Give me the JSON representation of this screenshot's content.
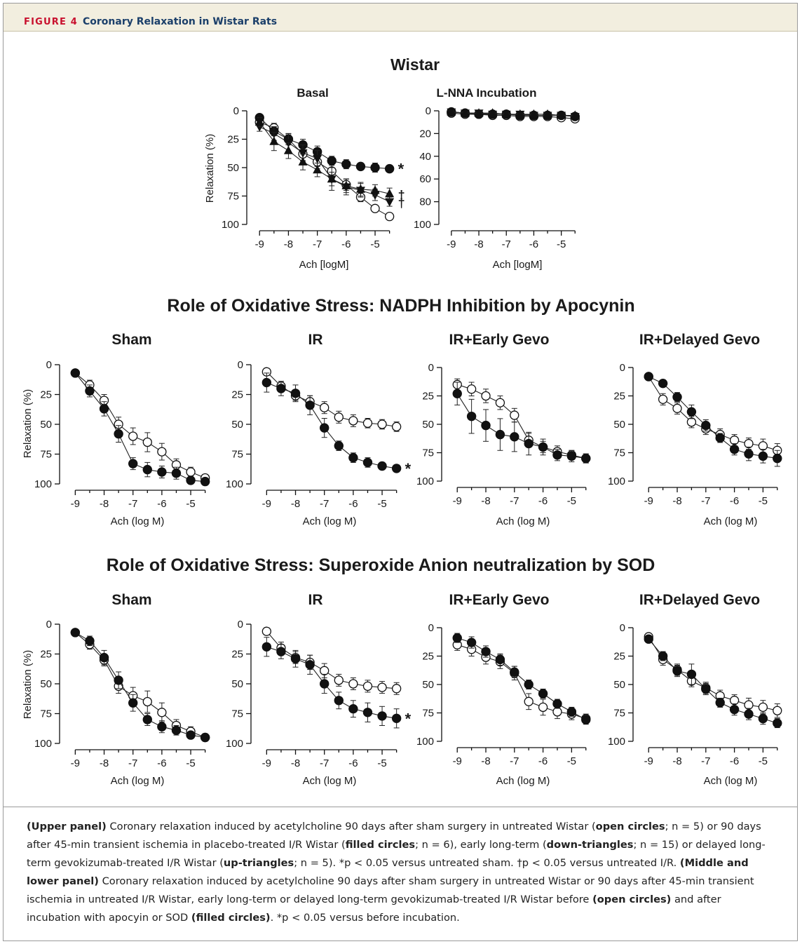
{
  "figure": {
    "label": "FIGURE 4",
    "title": "Coronary Relaxation in Wistar Rats"
  },
  "sections": [
    {
      "title": "Wistar"
    },
    {
      "title": "Role of Oxidative Stress: NADPH Inhibition by Apocynin"
    },
    {
      "title": "Role of Oxidative Stress: Superoxide Anion neutralization by SOD"
    }
  ],
  "caption": {
    "p1": [
      {
        "t": "(Upper panel)",
        "b": true
      },
      {
        "t": " Coronary relaxation induced by acetylcholine 90 days after sham surgery in untreated Wistar (",
        "b": false
      },
      {
        "t": "open circles",
        "b": true
      },
      {
        "t": "; n = 5) or 90 days after 45-min transient ischemia in placebo-treated I/R Wistar (",
        "b": false
      },
      {
        "t": "filled circles",
        "b": true
      },
      {
        "t": "; n = 6), early long-term (",
        "b": false
      },
      {
        "t": "down-triangles",
        "b": true
      },
      {
        "t": "; n = 15) or delayed long-term gevokizumab-treated I/R Wistar (",
        "b": false
      },
      {
        "t": "up-triangles",
        "b": true
      },
      {
        "t": "; n = 5). *p < 0.05 versus untreated sham. †p < 0.05 versus untreated I/R. ",
        "b": false
      },
      {
        "t": "(Middle and lower panel)",
        "b": true
      },
      {
        "t": " Coronary relaxation induced by acetylcholine 90 days after sham surgery in untreated Wistar or 90 days after 45-min transient ischemia in untreated I/R Wistar, early long-term or delayed long-term gevokizumab-treated I/R Wistar before ",
        "b": false
      },
      {
        "t": "(open circles)",
        "b": true
      },
      {
        "t": " and after incubation with apocyin or SOD ",
        "b": false
      },
      {
        "t": "(filled circles)",
        "b": true
      },
      {
        "t": ". *p < 0.05 versus before incubation.",
        "b": false
      }
    ]
  },
  "chart_data": [
    {
      "type": "line",
      "title": "Basal",
      "xlabel": "Ach [logM]",
      "ylabel": "Relaxation (%)",
      "xlim": [
        -9.2,
        -4.2
      ],
      "ylim": [
        0,
        100
      ],
      "y_inverted": true,
      "xticks": [
        -9,
        -8,
        -7,
        -6,
        -5
      ],
      "yticks": [
        0,
        25,
        50,
        75,
        100
      ],
      "x": [
        -9,
        -8.5,
        -8,
        -7.5,
        -7,
        -6.5,
        -6,
        -5.5,
        -5,
        -4.5
      ],
      "series": [
        {
          "marker": "open-circle",
          "values": [
            10,
            15,
            25,
            38,
            45,
            53,
            65,
            76,
            86,
            93
          ],
          "err": [
            3,
            4,
            5,
            6,
            6,
            6,
            5,
            4,
            3,
            3
          ]
        },
        {
          "marker": "filled-circle",
          "values": [
            6,
            18,
            25,
            30,
            36,
            44,
            47,
            49,
            50,
            51
          ],
          "err": [
            2,
            4,
            4,
            5,
            5,
            4,
            4,
            3,
            4,
            3
          ],
          "annotation": "*"
        },
        {
          "marker": "down-triangle",
          "values": [
            14,
            20,
            28,
            37,
            42,
            60,
            67,
            70,
            74,
            80
          ],
          "err": [
            4,
            6,
            8,
            7,
            7,
            10,
            7,
            6,
            5,
            4
          ],
          "annotation": "†"
        },
        {
          "marker": "up-triangle",
          "values": [
            10,
            27,
            35,
            45,
            52,
            60,
            66,
            69,
            70,
            73
          ],
          "err": [
            4,
            8,
            7,
            7,
            6,
            6,
            6,
            6,
            5,
            5
          ],
          "annotation": "†"
        }
      ]
    },
    {
      "type": "line",
      "title": "L-NNA Incubation",
      "xlabel": "Ach [logM]",
      "ylabel": "",
      "xlim": [
        -9.2,
        -4.2
      ],
      "ylim": [
        0,
        100
      ],
      "y_inverted": true,
      "xticks": [
        -9,
        -8,
        -7,
        -6,
        -5
      ],
      "yticks": [
        0,
        20,
        40,
        60,
        80,
        100
      ],
      "x": [
        -9,
        -8.5,
        -8,
        -7.5,
        -7,
        -6.5,
        -6,
        -5.5,
        -5,
        -4.5
      ],
      "series": [
        {
          "marker": "open-circle",
          "values": [
            2,
            3,
            3,
            4,
            4,
            5,
            5,
            5,
            6,
            7
          ],
          "err": [
            1,
            1,
            1,
            1,
            1,
            1,
            1,
            1,
            1,
            1
          ]
        },
        {
          "marker": "filled-circle",
          "values": [
            1,
            2,
            3,
            3,
            3,
            4,
            4,
            4,
            4,
            5
          ],
          "err": [
            1,
            1,
            1,
            1,
            1,
            1,
            1,
            1,
            1,
            1
          ]
        },
        {
          "marker": "down-triangle",
          "values": [
            1,
            2,
            2,
            3,
            3,
            3,
            4,
            4,
            4,
            5
          ],
          "err": [
            1,
            1,
            1,
            1,
            1,
            1,
            1,
            1,
            1,
            1
          ]
        },
        {
          "marker": "up-triangle",
          "values": [
            1,
            2,
            2,
            2,
            3,
            3,
            3,
            3,
            4,
            4
          ],
          "err": [
            1,
            1,
            1,
            1,
            1,
            1,
            1,
            1,
            1,
            1
          ]
        }
      ]
    },
    {
      "type": "line",
      "title": "Sham",
      "xlabel": "Ach (log M)",
      "ylabel": "Relaxation (%)",
      "xlim": [
        -9.3,
        -4.2
      ],
      "ylim": [
        0,
        100
      ],
      "y_inverted": true,
      "xticks": [
        -9,
        -8,
        -7,
        -6,
        -5
      ],
      "yticks": [
        0,
        25,
        50,
        75,
        100
      ],
      "x": [
        -9,
        -8.5,
        -8,
        -7.5,
        -7,
        -6.5,
        -6,
        -5.5,
        -5,
        -4.5
      ],
      "series": [
        {
          "marker": "open-circle",
          "values": [
            7,
            17,
            30,
            50,
            60,
            65,
            73,
            84,
            90,
            95
          ],
          "err": [
            2,
            4,
            5,
            6,
            7,
            8,
            7,
            5,
            4,
            3
          ]
        },
        {
          "marker": "filled-circle",
          "values": [
            7,
            22,
            37,
            58,
            83,
            88,
            90,
            91,
            97,
            98
          ],
          "err": [
            2,
            5,
            6,
            7,
            5,
            6,
            5,
            5,
            3,
            3
          ]
        }
      ]
    },
    {
      "type": "line",
      "title": "IR",
      "xlabel": "Ach (log M)",
      "ylabel": "",
      "xlim": [
        -9.3,
        -4.2
      ],
      "ylim": [
        0,
        100
      ],
      "y_inverted": true,
      "xticks": [
        -9,
        -8,
        -7,
        -6,
        -5
      ],
      "yticks": [
        0,
        25,
        50,
        75,
        100
      ],
      "x": [
        -9,
        -8.5,
        -8,
        -7.5,
        -7,
        -6.5,
        -6,
        -5.5,
        -5,
        -4.5
      ],
      "series": [
        {
          "marker": "open-circle",
          "values": [
            6,
            18,
            26,
            31,
            36,
            44,
            47,
            49,
            50,
            52
          ],
          "err": [
            3,
            4,
            4,
            5,
            5,
            5,
            5,
            4,
            4,
            4
          ]
        },
        {
          "marker": "filled-circle",
          "values": [
            15,
            20,
            24,
            34,
            53,
            68,
            78,
            82,
            85,
            87
          ],
          "err": [
            8,
            6,
            7,
            8,
            8,
            4,
            4,
            4,
            3,
            3
          ],
          "annotation": "*"
        }
      ]
    },
    {
      "type": "line",
      "title": "IR+Early Gevo",
      "xlabel": "Ach (log M)",
      "ylabel": "",
      "xlim": [
        -9.3,
        -4.2
      ],
      "ylim": [
        0,
        100
      ],
      "y_inverted": true,
      "xticks": [
        -9,
        -8,
        -7,
        -6,
        -5
      ],
      "yticks": [
        0,
        25,
        50,
        75,
        100
      ],
      "x": [
        -9,
        -8.5,
        -8,
        -7.5,
        -7,
        -6.5,
        -6,
        -5.5,
        -5,
        -4.5
      ],
      "series": [
        {
          "marker": "open-circle",
          "values": [
            15,
            19,
            25,
            31,
            42,
            64,
            70,
            74,
            77,
            80
          ],
          "err": [
            5,
            6,
            6,
            6,
            6,
            6,
            5,
            5,
            4,
            4
          ]
        },
        {
          "marker": "filled-circle",
          "values": [
            23,
            43,
            51,
            59,
            61,
            67,
            70,
            77,
            78,
            80
          ],
          "err": [
            10,
            15,
            14,
            14,
            13,
            10,
            7,
            5,
            5,
            4
          ]
        }
      ]
    },
    {
      "type": "line",
      "title": "IR+Delayed Gevo",
      "xlabel": "Ach (log M)",
      "ylabel": "",
      "xlim": [
        -9.3,
        -4.2
      ],
      "ylim": [
        0,
        100
      ],
      "y_inverted": true,
      "xticks": [
        -9,
        -8,
        -7,
        -6,
        -5
      ],
      "yticks": [
        0,
        25,
        50,
        75,
        100
      ],
      "x": [
        -9,
        -8.5,
        -8,
        -7.5,
        -7,
        -6.5,
        -6,
        -5.5,
        -5,
        -4.5
      ],
      "series": [
        {
          "marker": "open-circle",
          "values": [
            8,
            28,
            36,
            48,
            54,
            59,
            64,
            67,
            69,
            73
          ],
          "err": [
            2,
            5,
            5,
            5,
            5,
            5,
            5,
            5,
            6,
            6
          ]
        },
        {
          "marker": "filled-circle",
          "values": [
            8,
            14,
            26,
            39,
            51,
            62,
            72,
            76,
            78,
            80
          ],
          "err": [
            2,
            3,
            4,
            6,
            5,
            4,
            5,
            6,
            6,
            7
          ]
        }
      ]
    },
    {
      "type": "line",
      "title": "Sham",
      "xlabel": "Ach (log M)",
      "ylabel": "Relaxation (%)",
      "xlim": [
        -9.3,
        -4.2
      ],
      "ylim": [
        0,
        100
      ],
      "y_inverted": true,
      "xticks": [
        -9,
        -8,
        -7,
        -6,
        -5
      ],
      "yticks": [
        0,
        25,
        50,
        75,
        100
      ],
      "x": [
        -9,
        -8.5,
        -8,
        -7.5,
        -7,
        -6.5,
        -6,
        -5.5,
        -5,
        -4.5
      ],
      "series": [
        {
          "marker": "open-circle",
          "values": [
            7,
            17,
            30,
            52,
            60,
            65,
            74,
            85,
            90,
            95
          ],
          "err": [
            2,
            4,
            5,
            6,
            7,
            9,
            8,
            5,
            4,
            3
          ]
        },
        {
          "marker": "filled-circle",
          "values": [
            7,
            14,
            28,
            47,
            66,
            80,
            86,
            89,
            93,
            95
          ],
          "err": [
            2,
            4,
            6,
            7,
            7,
            5,
            5,
            4,
            3,
            3
          ]
        }
      ]
    },
    {
      "type": "line",
      "title": "IR",
      "xlabel": "Ach (log M)",
      "ylabel": "",
      "xlim": [
        -9.3,
        -4.2
      ],
      "ylim": [
        0,
        100
      ],
      "y_inverted": true,
      "xticks": [
        -9,
        -8,
        -7,
        -6,
        -5
      ],
      "yticks": [
        0,
        25,
        50,
        75,
        100
      ],
      "x": [
        -9,
        -8.5,
        -8,
        -7.5,
        -7,
        -6.5,
        -6,
        -5.5,
        -5,
        -4.5
      ],
      "series": [
        {
          "marker": "open-circle",
          "values": [
            6,
            20,
            28,
            32,
            39,
            47,
            50,
            52,
            53,
            54
          ],
          "err": [
            3,
            5,
            5,
            6,
            6,
            5,
            5,
            5,
            5,
            5
          ]
        },
        {
          "marker": "filled-circle",
          "values": [
            19,
            23,
            29,
            34,
            50,
            64,
            71,
            74,
            77,
            79
          ],
          "err": [
            8,
            6,
            7,
            8,
            8,
            7,
            7,
            8,
            8,
            8
          ],
          "annotation": "*"
        }
      ]
    },
    {
      "type": "line",
      "title": "IR+Early Gevo",
      "xlabel": "Ach (log M)",
      "ylabel": "",
      "xlim": [
        -9.3,
        -4.2
      ],
      "ylim": [
        0,
        100
      ],
      "y_inverted": true,
      "xticks": [
        -9,
        -8,
        -7,
        -6,
        -5
      ],
      "yticks": [
        0,
        25,
        50,
        75,
        100
      ],
      "x": [
        -9,
        -8.5,
        -8,
        -7.5,
        -7,
        -6.5,
        -6,
        -5.5,
        -5,
        -4.5
      ],
      "series": [
        {
          "marker": "open-circle",
          "values": [
            15,
            19,
            26,
            30,
            40,
            65,
            70,
            74,
            76,
            80
          ],
          "err": [
            5,
            6,
            6,
            6,
            6,
            7,
            7,
            6,
            5,
            4
          ]
        },
        {
          "marker": "filled-circle",
          "values": [
            9,
            13,
            21,
            28,
            39,
            50,
            58,
            67,
            74,
            81
          ],
          "err": [
            4,
            5,
            5,
            5,
            5,
            4,
            4,
            4,
            4,
            4
          ]
        }
      ]
    },
    {
      "type": "line",
      "title": "IR+Delayed Gevo",
      "xlabel": "Ach (log M)",
      "ylabel": "",
      "xlim": [
        -9.3,
        -4.2
      ],
      "ylim": [
        0,
        100
      ],
      "y_inverted": true,
      "xticks": [
        -9,
        -8,
        -7,
        -6,
        -5
      ],
      "yticks": [
        0,
        25,
        50,
        75,
        100
      ],
      "x": [
        -9,
        -8.5,
        -8,
        -7.5,
        -7,
        -6.5,
        -6,
        -5.5,
        -5,
        -4.5
      ],
      "series": [
        {
          "marker": "open-circle",
          "values": [
            8,
            28,
            37,
            47,
            53,
            60,
            64,
            68,
            70,
            73
          ],
          "err": [
            3,
            5,
            5,
            5,
            5,
            5,
            5,
            6,
            6,
            6
          ]
        },
        {
          "marker": "filled-circle",
          "values": [
            10,
            25,
            38,
            41,
            54,
            66,
            72,
            76,
            80,
            84
          ],
          "err": [
            3,
            4,
            5,
            9,
            5,
            4,
            5,
            5,
            5,
            4
          ]
        }
      ]
    }
  ]
}
